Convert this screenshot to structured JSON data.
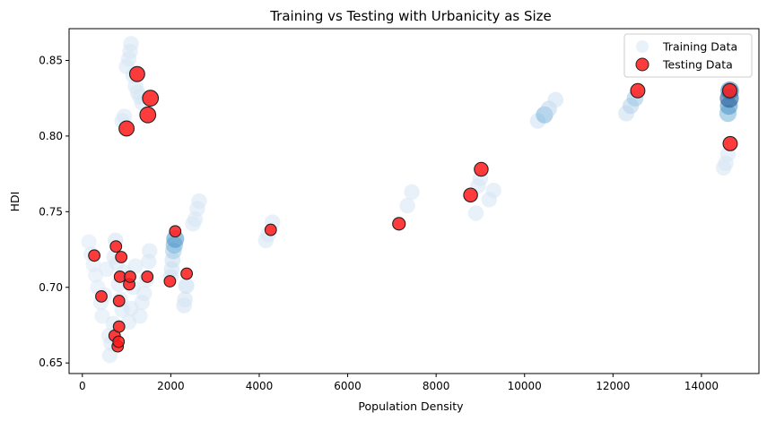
{
  "chart_data": {
    "type": "scatter",
    "title": "Training vs Testing with Urbanicity as Size",
    "xlabel": "Population Density",
    "ylabel": "HDI",
    "xlim": [
      -300,
      15300
    ],
    "ylim": [
      0.643,
      0.871
    ],
    "xticks": [
      0,
      2000,
      4000,
      6000,
      8000,
      10000,
      12000,
      14000
    ],
    "xtick_labels": [
      "0",
      "2000",
      "4000",
      "6000",
      "8000",
      "10000",
      "12000",
      "14000"
    ],
    "yticks": [
      0.65,
      0.7,
      0.75,
      0.8,
      0.85
    ],
    "ytick_labels": [
      "0.65",
      "0.70",
      "0.75",
      "0.80",
      "0.85"
    ],
    "grid": false,
    "legend_position": "top-right",
    "series": [
      {
        "name": "Training Data",
        "color_map": "Blues (by urbanicity)",
        "points": [
          {
            "x": 150,
            "y": 0.73,
            "u": 0.02
          },
          {
            "x": 200,
            "y": 0.722,
            "u": 0.02
          },
          {
            "x": 250,
            "y": 0.715,
            "u": 0.02
          },
          {
            "x": 300,
            "y": 0.708,
            "u": 0.02
          },
          {
            "x": 350,
            "y": 0.7,
            "u": 0.02
          },
          {
            "x": 420,
            "y": 0.69,
            "u": 0.03
          },
          {
            "x": 450,
            "y": 0.681,
            "u": 0.03
          },
          {
            "x": 500,
            "y": 0.695,
            "u": 0.03
          },
          {
            "x": 550,
            "y": 0.712,
            "u": 0.03
          },
          {
            "x": 600,
            "y": 0.668,
            "u": 0.04
          },
          {
            "x": 620,
            "y": 0.655,
            "u": 0.05
          },
          {
            "x": 650,
            "y": 0.663,
            "u": 0.05
          },
          {
            "x": 700,
            "y": 0.676,
            "u": 0.05
          },
          {
            "x": 720,
            "y": 0.72,
            "u": 0.06
          },
          {
            "x": 750,
            "y": 0.731,
            "u": 0.08
          },
          {
            "x": 780,
            "y": 0.716,
            "u": 0.05
          },
          {
            "x": 820,
            "y": 0.702,
            "u": 0.05
          },
          {
            "x": 860,
            "y": 0.692,
            "u": 0.05
          },
          {
            "x": 900,
            "y": 0.685,
            "u": 0.05
          },
          {
            "x": 950,
            "y": 0.71,
            "u": 0.05
          },
          {
            "x": 1000,
            "y": 0.706,
            "u": 0.05
          },
          {
            "x": 1050,
            "y": 0.677,
            "u": 0.05
          },
          {
            "x": 1100,
            "y": 0.686,
            "u": 0.05
          },
          {
            "x": 1150,
            "y": 0.7,
            "u": 0.05
          },
          {
            "x": 1200,
            "y": 0.714,
            "u": 0.05
          },
          {
            "x": 1300,
            "y": 0.681,
            "u": 0.05
          },
          {
            "x": 1350,
            "y": 0.69,
            "u": 0.05
          },
          {
            "x": 1400,
            "y": 0.696,
            "u": 0.05
          },
          {
            "x": 1450,
            "y": 0.705,
            "u": 0.05
          },
          {
            "x": 1500,
            "y": 0.717,
            "u": 0.06
          },
          {
            "x": 1520,
            "y": 0.724,
            "u": 0.06
          },
          {
            "x": 2000,
            "y": 0.707,
            "u": 0.08
          },
          {
            "x": 2020,
            "y": 0.712,
            "u": 0.1
          },
          {
            "x": 2040,
            "y": 0.718,
            "u": 0.14
          },
          {
            "x": 2060,
            "y": 0.724,
            "u": 0.25
          },
          {
            "x": 2080,
            "y": 0.728,
            "u": 0.4
          },
          {
            "x": 2100,
            "y": 0.732,
            "u": 0.55
          },
          {
            "x": 2300,
            "y": 0.688,
            "u": 0.08
          },
          {
            "x": 2320,
            "y": 0.692,
            "u": 0.08
          },
          {
            "x": 2350,
            "y": 0.701,
            "u": 0.15
          },
          {
            "x": 2500,
            "y": 0.742,
            "u": 0.06
          },
          {
            "x": 2550,
            "y": 0.745,
            "u": 0.06
          },
          {
            "x": 2600,
            "y": 0.752,
            "u": 0.06
          },
          {
            "x": 2640,
            "y": 0.757,
            "u": 0.06
          },
          {
            "x": 4150,
            "y": 0.731,
            "u": 0.06
          },
          {
            "x": 4200,
            "y": 0.735,
            "u": 0.06
          },
          {
            "x": 4300,
            "y": 0.743,
            "u": 0.06
          },
          {
            "x": 900,
            "y": 0.81,
            "u": 0.06
          },
          {
            "x": 950,
            "y": 0.813,
            "u": 0.06
          },
          {
            "x": 1000,
            "y": 0.846,
            "u": 0.06
          },
          {
            "x": 1050,
            "y": 0.851,
            "u": 0.06
          },
          {
            "x": 1080,
            "y": 0.856,
            "u": 0.06
          },
          {
            "x": 1100,
            "y": 0.861,
            "u": 0.06
          },
          {
            "x": 1150,
            "y": 0.84,
            "u": 0.06
          },
          {
            "x": 1200,
            "y": 0.833,
            "u": 0.06
          },
          {
            "x": 1250,
            "y": 0.829,
            "u": 0.06
          },
          {
            "x": 1300,
            "y": 0.826,
            "u": 0.06
          },
          {
            "x": 1350,
            "y": 0.822,
            "u": 0.06
          },
          {
            "x": 7350,
            "y": 0.754,
            "u": 0.06
          },
          {
            "x": 7450,
            "y": 0.763,
            "u": 0.06
          },
          {
            "x": 8900,
            "y": 0.749,
            "u": 0.06
          },
          {
            "x": 8950,
            "y": 0.767,
            "u": 0.06
          },
          {
            "x": 9000,
            "y": 0.772,
            "u": 0.06
          },
          {
            "x": 9200,
            "y": 0.758,
            "u": 0.06
          },
          {
            "x": 9300,
            "y": 0.764,
            "u": 0.06
          },
          {
            "x": 10300,
            "y": 0.81,
            "u": 0.1
          },
          {
            "x": 10450,
            "y": 0.814,
            "u": 0.38
          },
          {
            "x": 10550,
            "y": 0.818,
            "u": 0.18
          },
          {
            "x": 10700,
            "y": 0.824,
            "u": 0.1
          },
          {
            "x": 12300,
            "y": 0.815,
            "u": 0.14
          },
          {
            "x": 12400,
            "y": 0.82,
            "u": 0.2
          },
          {
            "x": 12500,
            "y": 0.825,
            "u": 0.28
          },
          {
            "x": 14500,
            "y": 0.779,
            "u": 0.06
          },
          {
            "x": 14550,
            "y": 0.782,
            "u": 0.06
          },
          {
            "x": 14600,
            "y": 0.788,
            "u": 0.06
          },
          {
            "x": 14600,
            "y": 0.815,
            "u": 0.4
          },
          {
            "x": 14620,
            "y": 0.82,
            "u": 0.55
          },
          {
            "x": 14630,
            "y": 0.825,
            "u": 0.85
          },
          {
            "x": 14640,
            "y": 0.83,
            "u": 0.7
          }
        ]
      },
      {
        "name": "Testing Data",
        "color": "#ff1a1a",
        "points": [
          {
            "x": 270,
            "y": 0.721,
            "u": 0.3
          },
          {
            "x": 430,
            "y": 0.694,
            "u": 0.3
          },
          {
            "x": 730,
            "y": 0.668,
            "u": 0.3
          },
          {
            "x": 760,
            "y": 0.727,
            "u": 0.3
          },
          {
            "x": 800,
            "y": 0.661,
            "u": 0.3
          },
          {
            "x": 820,
            "y": 0.664,
            "u": 0.3
          },
          {
            "x": 830,
            "y": 0.674,
            "u": 0.3
          },
          {
            "x": 830,
            "y": 0.691,
            "u": 0.3
          },
          {
            "x": 850,
            "y": 0.707,
            "u": 0.3
          },
          {
            "x": 880,
            "y": 0.72,
            "u": 0.3
          },
          {
            "x": 1060,
            "y": 0.702,
            "u": 0.3
          },
          {
            "x": 1080,
            "y": 0.707,
            "u": 0.3
          },
          {
            "x": 1470,
            "y": 0.707,
            "u": 0.3
          },
          {
            "x": 1980,
            "y": 0.704,
            "u": 0.3
          },
          {
            "x": 2100,
            "y": 0.737,
            "u": 0.3
          },
          {
            "x": 2360,
            "y": 0.709,
            "u": 0.3
          },
          {
            "x": 4260,
            "y": 0.738,
            "u": 0.3
          },
          {
            "x": 7160,
            "y": 0.742,
            "u": 0.45
          },
          {
            "x": 8780,
            "y": 0.761,
            "u": 0.6
          },
          {
            "x": 9020,
            "y": 0.778,
            "u": 0.6
          },
          {
            "x": 12560,
            "y": 0.83,
            "u": 0.65
          },
          {
            "x": 14640,
            "y": 0.83,
            "u": 0.65
          },
          {
            "x": 14650,
            "y": 0.795,
            "u": 0.65
          },
          {
            "x": 1000,
            "y": 0.805,
            "u": 0.75
          },
          {
            "x": 1240,
            "y": 0.841,
            "u": 0.75
          },
          {
            "x": 1480,
            "y": 0.814,
            "u": 0.85
          },
          {
            "x": 1540,
            "y": 0.825,
            "u": 0.85
          }
        ]
      }
    ],
    "legend": [
      "Training Data",
      "Testing Data"
    ]
  }
}
